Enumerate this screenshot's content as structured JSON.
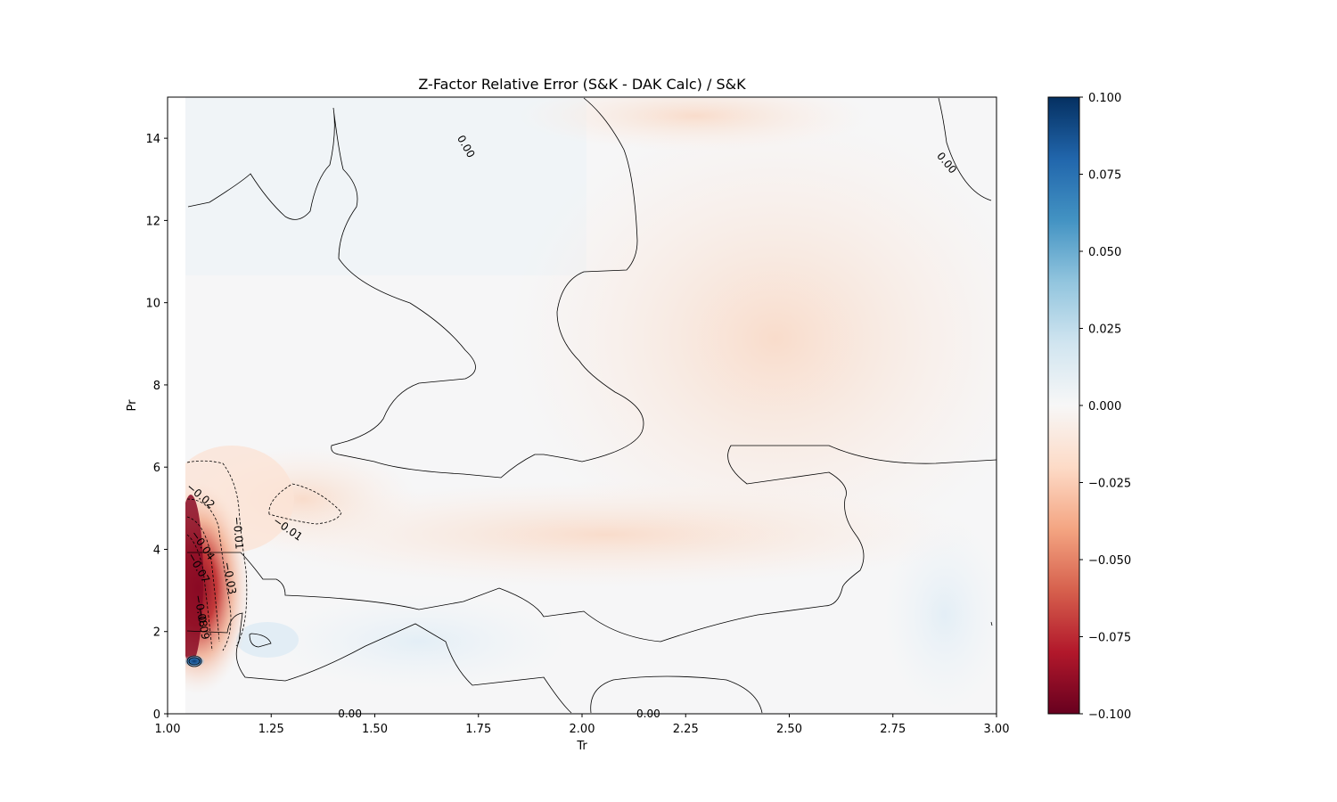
{
  "chart_data": {
    "type": "heatmap",
    "title": "Z-Factor Relative Error (S&K - DAK Calc) / S&K",
    "xlabel": "Tr",
    "ylabel": "Pr",
    "xlim": [
      1.0,
      3.0
    ],
    "ylim": [
      0,
      15
    ],
    "x_ticks": [
      "1.00",
      "1.25",
      "1.50",
      "1.75",
      "2.00",
      "2.25",
      "2.50",
      "2.75",
      "3.00"
    ],
    "y_ticks": [
      "0",
      "2",
      "4",
      "6",
      "8",
      "10",
      "12",
      "14"
    ],
    "colorbar": {
      "colormap": "RdBu",
      "range": [
        -0.1,
        0.1
      ],
      "ticks": [
        "0.100",
        "0.075",
        "0.050",
        "0.025",
        "0.000",
        "−0.025",
        "−0.050",
        "−0.075",
        "−0.100"
      ]
    },
    "contour_labels": [
      {
        "text": "0.00",
        "tr": 1.72,
        "pr": 13.8
      },
      {
        "text": "0.00",
        "tr": 2.88,
        "pr": 13.4
      },
      {
        "text": "−0.02",
        "tr": 1.08,
        "pr": 5.3
      },
      {
        "text": "−0.01",
        "tr": 1.29,
        "pr": 4.5
      },
      {
        "text": "−0.01",
        "tr": 1.17,
        "pr": 4.4
      },
      {
        "text": "−0.04",
        "tr": 1.085,
        "pr": 4.1
      },
      {
        "text": "−0.07",
        "tr": 1.075,
        "pr": 3.55
      },
      {
        "text": "−0.03",
        "tr": 1.15,
        "pr": 3.3
      },
      {
        "text": "−0.08",
        "tr": 1.08,
        "pr": 2.5
      },
      {
        "text": "−0.09",
        "tr": 1.085,
        "pr": 2.2
      },
      {
        "text": "0.00",
        "tr": 1.44,
        "pr": 0.0
      },
      {
        "text": "0.00",
        "tr": 2.16,
        "pr": 0.0
      }
    ],
    "grid": false,
    "legend": "colorbar-right"
  }
}
